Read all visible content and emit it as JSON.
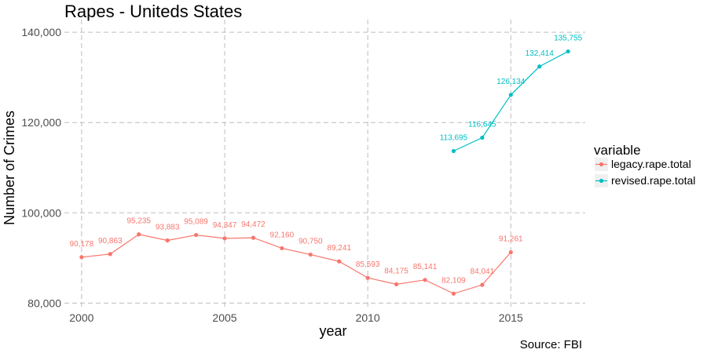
{
  "chart_data": {
    "type": "line",
    "title": "Rapes - Uniteds States",
    "xlabel": "year",
    "ylabel": "Number of Crimes",
    "caption": "Source: FBI",
    "xlim": [
      1999.4,
      2017.6
    ],
    "ylim": [
      80000,
      140000
    ],
    "x_ticks": [
      2000,
      2005,
      2010,
      2015
    ],
    "y_ticks": [
      80000,
      100000,
      120000,
      140000
    ],
    "y_tick_labels": [
      "80,000",
      "100,000",
      "120,000",
      "140,000"
    ],
    "grid": true,
    "legend": {
      "title": "variable",
      "position": "right",
      "entries": [
        "legacy.rape.total",
        "revised.rape.total"
      ]
    },
    "series": [
      {
        "name": "legacy.rape.total",
        "color": "#F8766D",
        "x": [
          2000,
          2001,
          2002,
          2003,
          2004,
          2005,
          2006,
          2007,
          2008,
          2009,
          2010,
          2011,
          2012,
          2013,
          2014,
          2015
        ],
        "values": [
          90178,
          90863,
          95235,
          93883,
          95089,
          94347,
          94472,
          92160,
          90750,
          89241,
          85593,
          84175,
          85141,
          82109,
          84041,
          91261
        ],
        "labels": [
          "90,178",
          "90,863",
          "95,235",
          "93,883",
          "95,089",
          "94,347",
          "94,472",
          "92,160",
          "90,750",
          "89,241",
          "85,593",
          "84,175",
          "85,141",
          "82,109",
          "84,041",
          "91,261"
        ]
      },
      {
        "name": "revised.rape.total",
        "color": "#00BFC4",
        "x": [
          2013,
          2014,
          2015,
          2016,
          2017
        ],
        "values": [
          113695,
          116645,
          126134,
          132414,
          135755
        ],
        "labels": [
          "113,695",
          "116,645",
          "126,134",
          "132,414",
          "135,755"
        ]
      }
    ]
  }
}
